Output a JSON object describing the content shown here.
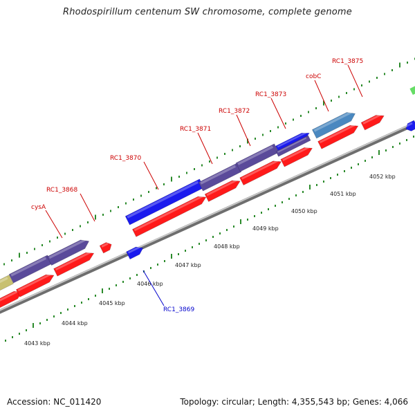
{
  "title": "Rhodospirillum centenum SW chromosome, complete genome",
  "footer": {
    "accession": "Accession: NC_011420",
    "topology": "Topology: circular; Length: 4,355,543 bp; Genes: 4,066"
  },
  "colors": {
    "forward_red": "#ff1a1a",
    "gene_blue": "#1a1aee",
    "purple": "#5a4a9a",
    "steel_blue": "#4a88c0",
    "olive": "#c8c070",
    "green_tick": "#2a8a2a",
    "green_block": "#66dd66",
    "backbone": "#9a9a9a",
    "label_red": "#cc0000",
    "label_blue": "#0000cc"
  },
  "kbp_labels": [
    "4043 kbp",
    "4044 kbp",
    "4045 kbp",
    "4046 kbp",
    "4047 kbp",
    "4048 kbp",
    "4049 kbp",
    "4050 kbp",
    "4051 kbp",
    "4052 kbp"
  ],
  "gene_labels": [
    {
      "text": "cysA",
      "color": "label_red"
    },
    {
      "text": "RC1_3868",
      "color": "label_red"
    },
    {
      "text": "RC1_3870",
      "color": "label_red"
    },
    {
      "text": "RC1_3871",
      "color": "label_red"
    },
    {
      "text": "RC1_3872",
      "color": "label_red"
    },
    {
      "text": "RC1_3873",
      "color": "label_red"
    },
    {
      "text": "cobC",
      "color": "label_red"
    },
    {
      "text": "RC1_3875",
      "color": "label_red"
    },
    {
      "text": "RC1_3869",
      "color": "label_blue"
    }
  ]
}
